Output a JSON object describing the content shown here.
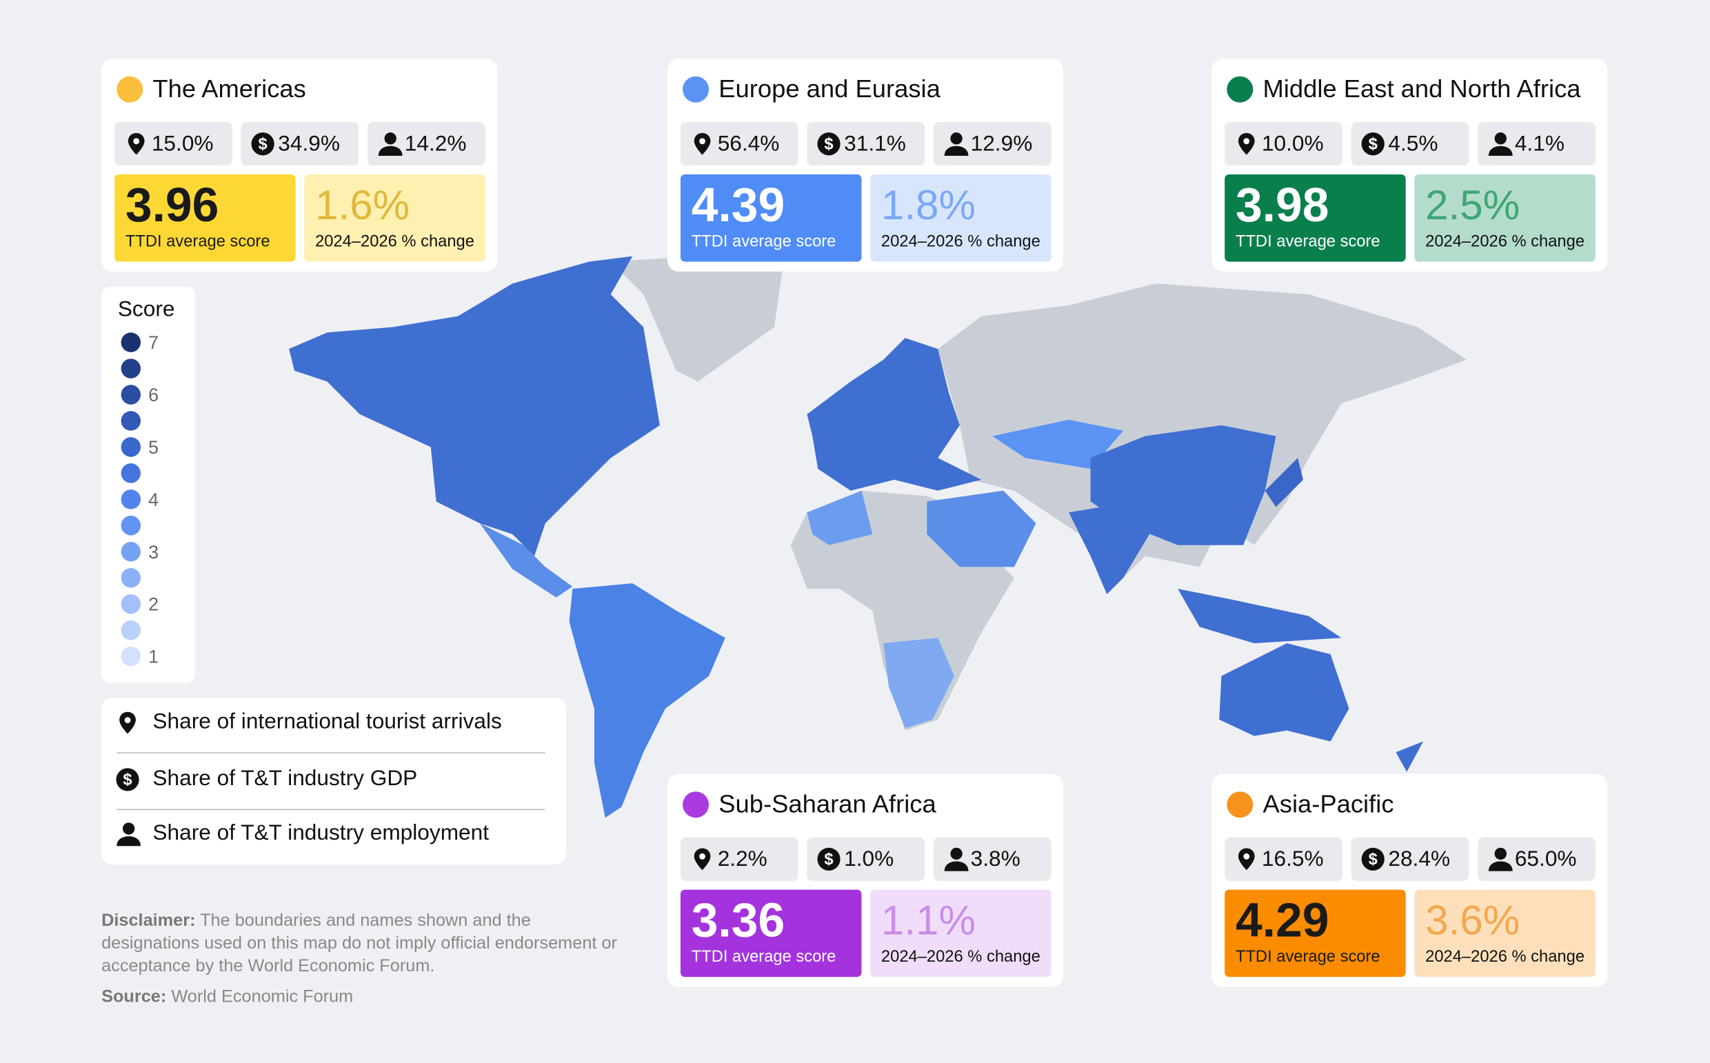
{
  "regions": [
    {
      "name": "The Americas",
      "arrivals": "15.0%",
      "gdp": "34.9%",
      "employment": "14.2%",
      "score": "3.96",
      "score_label": "TTDI average score",
      "change": "1.6%",
      "change_label": "2024–2026 % change"
    },
    {
      "name": "Europe and Eurasia",
      "arrivals": "56.4%",
      "gdp": "31.1%",
      "employment": "12.9%",
      "score": "4.39",
      "score_label": "TTDI average score",
      "change": "1.8%",
      "change_label": "2024–2026 % change"
    },
    {
      "name": "Middle East and North Africa",
      "arrivals": "10.0%",
      "gdp": "4.5%",
      "employment": "4.1%",
      "score": "3.98",
      "score_label": "TTDI average score",
      "change": "2.5%",
      "change_label": "2024–2026 % change"
    },
    {
      "name": "Sub-Saharan Africa",
      "arrivals": "2.2%",
      "gdp": "1.0%",
      "employment": "3.8%",
      "score": "3.36",
      "score_label": "TTDI average score",
      "change": "1.1%",
      "change_label": "2024–2026 % change"
    },
    {
      "name": "Asia-Pacific",
      "arrivals": "16.5%",
      "gdp": "28.4%",
      "employment": "65.0%",
      "score": "4.29",
      "score_label": "TTDI average score",
      "change": "3.6%",
      "change_label": "2024–2026 % change"
    }
  ],
  "legend": {
    "title": "Score",
    "labels": [
      "7",
      "6",
      "5",
      "4",
      "3",
      "2",
      "1"
    ]
  },
  "key": [
    "Share of international tourist arrivals",
    "Share of T&T industry GDP",
    "Share of T&T industry employment"
  ],
  "disclaimer": {
    "label": "Disclaimer:",
    "text": "The boundaries and names shown and the designations used on this map do not imply official endorsement or acceptance by the World Economic Forum."
  },
  "source": {
    "label": "Source:",
    "text": "World Economic Forum"
  }
}
